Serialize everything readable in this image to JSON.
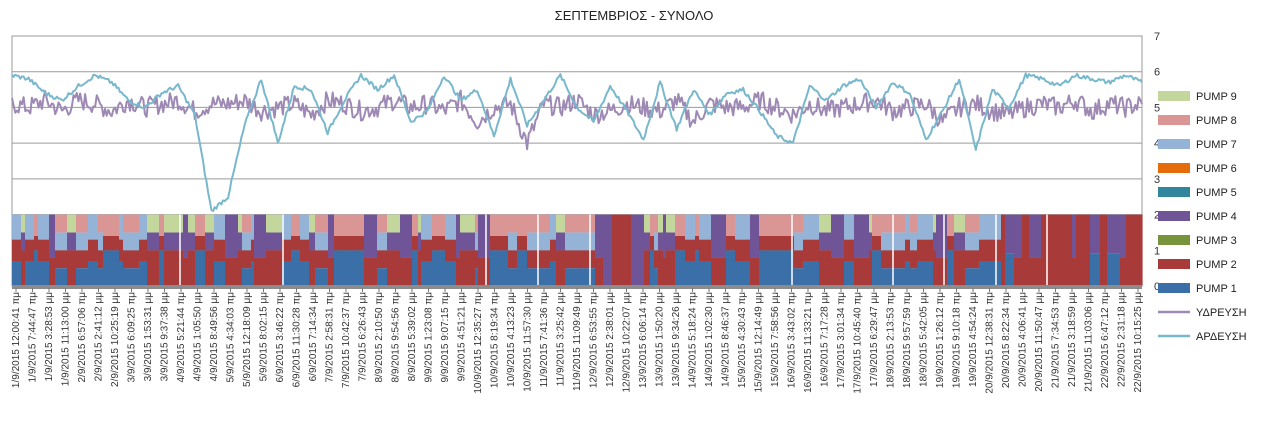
{
  "chart_data": {
    "type": "area",
    "title": "ΣΕΠΤΕΜΒΡΙΟΣ - ΣΥΝΟΛΟ",
    "xlabel": "",
    "ylabel": "",
    "ylim": [
      0,
      7
    ],
    "y_ticks": [
      "0",
      "1",
      "2",
      "3",
      "4",
      "5",
      "6",
      "7"
    ],
    "y_axis_side": "right",
    "grid": true,
    "legend_position": "right",
    "x_tick_labels": [
      "1/9/2015 12:00:41 πμ",
      "1/9/2015 7:44:47 πμ",
      "1/9/2015 3:28:53 μμ",
      "1/9/2015 11:13:00 μμ",
      "2/9/2015 6:57:06 πμ",
      "2/9/2015 2:41:12 μμ",
      "2/9/2015 10:25:19 μμ",
      "3/9/2015 6:09:25 πμ",
      "3/9/2015 1:53:31 μμ",
      "3/9/2015 9:37:38 μμ",
      "4/9/2015 5:21:44 πμ",
      "4/9/2015 1:05:50 μμ",
      "4/9/2015 8:49:56 μμ",
      "5/9/2015 4:34:03 πμ",
      "5/9/2015 12:18:09 μμ",
      "5/9/2015 8:02:15 μμ",
      "6/9/2015 3:46:22 πμ",
      "6/9/2015 11:30:28 πμ",
      "6/9/2015 7:14:34 μμ",
      "7/9/2015 2:58:31 πμ",
      "7/9/2015 10:42:37 πμ",
      "7/9/2015 6:26:43 μμ",
      "8/9/2015 2:10:50 πμ",
      "8/9/2015 9:54:56 πμ",
      "8/9/2015 5:39:02 μμ",
      "9/9/2015 1:23:08 πμ",
      "9/9/2015 9:07:15 πμ",
      "9/9/2015 4:51:21 μμ",
      "10/9/2015 12:35:27 πμ",
      "10/9/2015 8:19:34 πμ",
      "10/9/2015 4:13:23 μμ",
      "10/9/2015 11:57:30 μμ",
      "11/9/2015 7:41:36 πμ",
      "11/9/2015 3:25:42 μμ",
      "11/9/2015 11:09:49 μμ",
      "12/9/2015 6:53:55 πμ",
      "12/9/2015 2:38:01 μμ",
      "12/9/2015 10:22:07 μμ",
      "13/9/2015 6:06:14 πμ",
      "13/9/2015 1:50:20 μμ",
      "13/9/2015 9:34:26 μμ",
      "14/9/2015 5:18:24 πμ",
      "14/9/2015 1:02:30 μμ",
      "14/9/2015 8:46:37 μμ",
      "15/9/2015 4:30:43 πμ",
      "15/9/2015 12:14:49 μμ",
      "15/9/2015 7:58:56 μμ",
      "16/9/2015 3:43:02 πμ",
      "16/9/2015 11:33:21 πμ",
      "16/9/2015 7:17:28 μμ",
      "17/9/2015 3:01:34 πμ",
      "17/9/2015 10:45:40 πμ",
      "17/9/2015 6:29:47 μμ",
      "18/9/2015 2:13:53 πμ",
      "18/9/2015 9:57:59 πμ",
      "18/9/2015 5:42:05 μμ",
      "19/9/2015 1:26:12 πμ",
      "19/9/2015 9:10:18 πμ",
      "19/9/2015 4:54:24 μμ",
      "20/9/2015 12:38:31 πμ",
      "20/9/2015 8:22:34 πμ",
      "20/9/2015 4:06:41 μμ",
      "20/9/2015 11:50:47 μμ",
      "21/9/2015 7:34:53 πμ",
      "21/9/2015 3:18:59 μμ",
      "21/9/2015 11:03:06 μμ",
      "22/9/2015 6:47:12 πμ",
      "22/9/2015 2:31:18 μμ",
      "22/9/2015 10:15:25 μμ"
    ],
    "series": [
      {
        "name": "PUMP 9",
        "kind": "area",
        "color": "#c3d69b"
      },
      {
        "name": "PUMP 8",
        "kind": "area",
        "color": "#d99694"
      },
      {
        "name": "PUMP 7",
        "kind": "area",
        "color": "#95b3d7"
      },
      {
        "name": "PUMP 6",
        "kind": "area",
        "color": "#e46c0a"
      },
      {
        "name": "PUMP 5",
        "kind": "area",
        "color": "#31859c"
      },
      {
        "name": "PUMP 4",
        "kind": "area",
        "color": "#6f5597"
      },
      {
        "name": "PUMP 3",
        "kind": "area",
        "color": "#77933c"
      },
      {
        "name": "PUMP 2",
        "kind": "area",
        "color": "#a83a3a"
      },
      {
        "name": "PUMP 1",
        "kind": "area",
        "color": "#3a6fa8"
      },
      {
        "name": "ΥΔΡΕΥΣΗ",
        "kind": "line",
        "color": "#9e89b5"
      },
      {
        "name": "ΑΡΔΕΥΣΗ",
        "kind": "line",
        "color": "#79b8cc"
      }
    ],
    "line_series": {
      "ΥΔΡΕΥΣΗ": [
        5.1,
        5.0,
        5.2,
        4.9,
        5.2,
        5.1,
        4.9,
        5.2,
        5.0,
        5.1,
        5.2,
        4.9,
        5.1,
        5.1,
        5.2,
        4.9,
        5.0,
        5.1,
        4.8,
        5.2,
        5.1,
        4.9,
        5.0,
        5.2,
        5.0,
        5.1,
        4.9,
        5.2,
        4.6,
        5.0,
        5.1,
        4.0,
        5.1,
        5.0,
        5.2,
        4.8,
        4.9,
        5.1,
        5.0,
        4.9,
        5.2,
        4.6,
        5.1,
        5.0,
        5.0,
        5.2,
        5.0,
        4.8,
        5.1,
        4.9,
        5.0,
        5.1,
        5.2,
        4.9,
        5.0,
        5.1,
        4.6,
        5.0,
        5.1,
        4.9,
        4.8,
        5.0,
        5.1,
        5.0,
        5.2,
        4.9,
        5.1,
        5.0,
        5.1
      ],
      "ΑΡΔΕΥΣΗ": [
        5.9,
        5.8,
        5.4,
        5.2,
        5.6,
        5.9,
        5.7,
        5.2,
        5.0,
        5.4,
        5.6,
        4.8,
        2.1,
        2.5,
        4.5,
        5.8,
        4.0,
        5.6,
        5.5,
        4.3,
        5.2,
        5.9,
        5.5,
        5.9,
        4.6,
        4.9,
        5.9,
        5.2,
        5.5,
        4.2,
        5.8,
        4.5,
        5.2,
        5.9,
        5.0,
        4.6,
        5.6,
        4.9,
        4.1,
        5.7,
        4.4,
        5.5,
        4.8,
        5.4,
        5.5,
        4.9,
        4.2,
        4.0,
        5.6,
        5.2,
        5.6,
        5.8,
        5.0,
        5.7,
        5.4,
        4.1,
        4.9,
        5.8,
        3.8,
        5.5,
        5.0,
        5.9,
        5.8,
        5.6,
        5.9,
        5.8,
        5.7,
        5.9,
        5.7
      ]
    },
    "stack_total_max": 2
  }
}
